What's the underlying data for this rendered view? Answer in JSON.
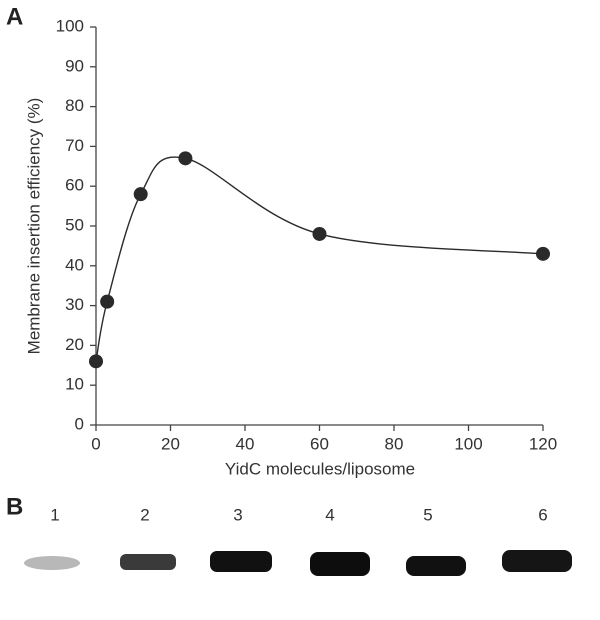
{
  "chart_data": {
    "type": "line",
    "panel_label": "A",
    "x_label": "YidC molecules/liposome",
    "y_label": "Membrane insertion efficiency (%)",
    "x": [
      0,
      3,
      12,
      24,
      60,
      120
    ],
    "values": [
      16,
      31,
      58,
      67,
      48,
      43
    ],
    "color": "#2a2a2a",
    "markers": true,
    "smooth": true,
    "xlim": [
      0,
      120
    ],
    "xticks": [
      0,
      20,
      40,
      60,
      80,
      100,
      120
    ],
    "ylim": [
      0,
      100
    ],
    "yticks": [
      0,
      10,
      20,
      30,
      40,
      50,
      60,
      70,
      80,
      90,
      100
    ]
  },
  "gel": {
    "panel_label": "B",
    "lanes": [
      "1",
      "2",
      "3",
      "4",
      "5",
      "6"
    ]
  }
}
